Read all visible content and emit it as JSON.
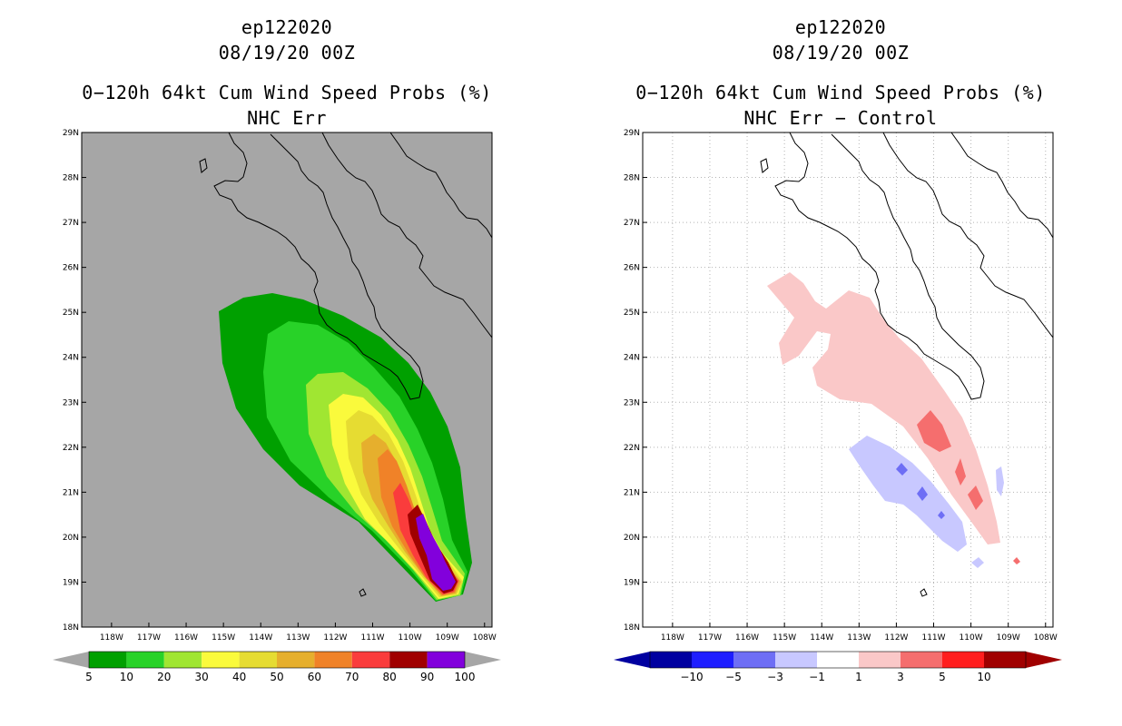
{
  "panels": [
    {
      "title1": "ep122020",
      "title2": "08/19/20 00Z",
      "title3": "0−120h 64kt Cum Wind Speed Probs (%)",
      "title4": "NHC Err"
    },
    {
      "title1": "ep122020",
      "title2": "08/19/20 00Z",
      "title3": "0−120h 64kt Cum Wind Speed Probs (%)",
      "title4": "NHC Err − Control"
    }
  ],
  "chart_data": [
    {
      "type": "heatmap",
      "title": "0−120h 64kt Cum Wind Speed Probs (%) NHC Err",
      "storm": "ep122020",
      "time": "08/19/20 00Z",
      "x_ticks": [
        "118W",
        "117W",
        "116W",
        "115W",
        "114W",
        "113W",
        "112W",
        "111W",
        "110W",
        "109W",
        "108W"
      ],
      "y_ticks": [
        "18N",
        "19N",
        "20N",
        "21N",
        "22N",
        "23N",
        "24N",
        "25N",
        "26N",
        "27N",
        "28N",
        "29N"
      ],
      "xlim": [
        -118.8,
        -107.8
      ],
      "ylim": [
        18,
        29
      ],
      "grid": false,
      "background": "#a6a6a6",
      "colorbar": {
        "labels": [
          "5",
          "10",
          "20",
          "30",
          "40",
          "50",
          "60",
          "70",
          "80",
          "90",
          "100"
        ],
        "colors": [
          "#00a000",
          "#28d228",
          "#a0e632",
          "#fafa3c",
          "#e6dc32",
          "#e6af2d",
          "#f08228",
          "#fa3c3c",
          "#a00000",
          "#8200dc"
        ],
        "low_arrow": "#a6a6a6",
        "high_arrow": "#a6a6a6"
      },
      "contour_levels": [
        5,
        10,
        20,
        30,
        40,
        50,
        60,
        70,
        80,
        90
      ]
    },
    {
      "type": "heatmap",
      "title": "0−120h 64kt Cum Wind Speed Probs (%) NHC Err − Control",
      "storm": "ep122020",
      "time": "08/19/20 00Z",
      "x_ticks": [
        "118W",
        "117W",
        "116W",
        "115W",
        "114W",
        "113W",
        "112W",
        "111W",
        "110W",
        "109W",
        "108W"
      ],
      "y_ticks": [
        "18N",
        "19N",
        "20N",
        "21N",
        "22N",
        "23N",
        "24N",
        "25N",
        "26N",
        "27N",
        "28N",
        "29N"
      ],
      "xlim": [
        -118.8,
        -107.8
      ],
      "ylim": [
        18,
        29
      ],
      "grid": true,
      "background": "#ffffff",
      "colorbar": {
        "labels": [
          "−10",
          "−5",
          "−3",
          "−1",
          "1",
          "3",
          "5",
          "10"
        ],
        "colors": [
          "#0000a0",
          "#1e1eff",
          "#6e6ef5",
          "#c8c8ff",
          "#ffffff",
          "#fac8c8",
          "#f56e6e",
          "#ff1e1e",
          "#a00000"
        ],
        "low_arrow": "#0000a0",
        "high_arrow": "#a00000"
      },
      "contour_levels": [
        -10,
        -5,
        -3,
        -1,
        1,
        3,
        5,
        10
      ]
    }
  ]
}
